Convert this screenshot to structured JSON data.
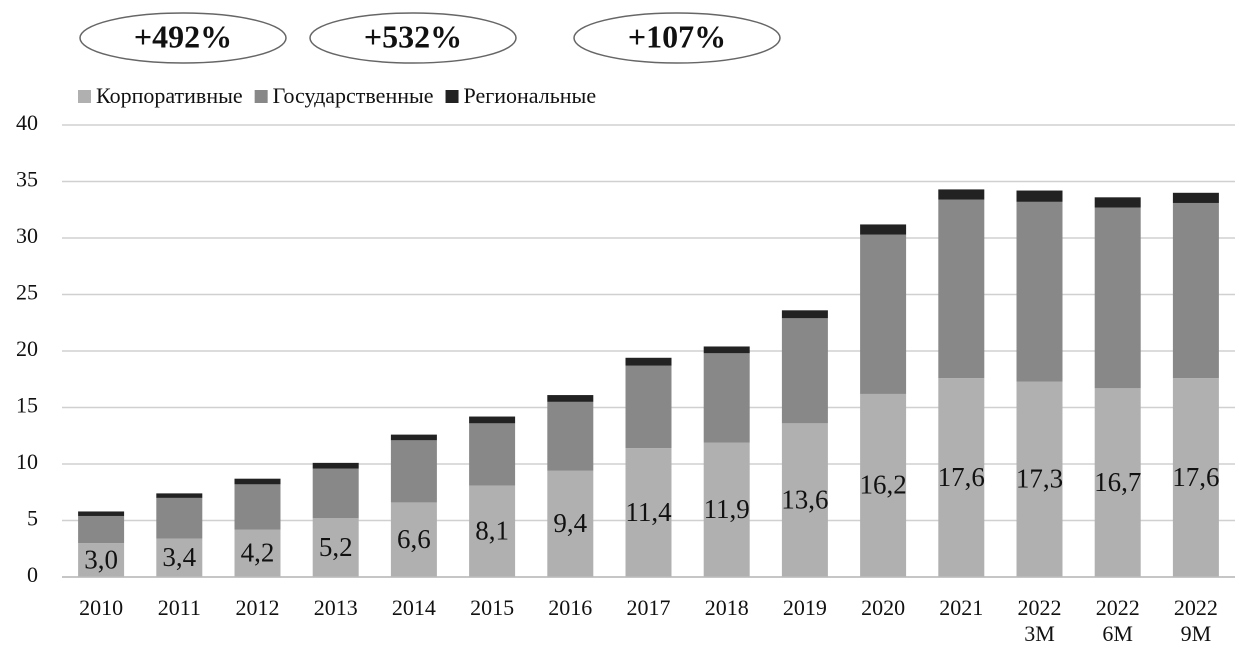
{
  "chart_data": {
    "type": "stacked_bar",
    "annotations": [
      "+492%",
      "+532%",
      "+107%"
    ],
    "categories": [
      "2010",
      "2011",
      "2012",
      "2013",
      "2014",
      "2015",
      "2016",
      "2017",
      "2018",
      "2019",
      "2020",
      "2021",
      "2022\n3M",
      "2022\n6M",
      "2022\n9M"
    ],
    "series": [
      {
        "name": "Корпоративные",
        "color": "#b0b0b0",
        "values": [
          3.0,
          3.4,
          4.2,
          5.2,
          6.6,
          8.1,
          9.4,
          11.4,
          11.9,
          13.6,
          16.2,
          17.6,
          17.3,
          16.7,
          17.6
        ],
        "value_labels": [
          "3,0",
          "3,4",
          "4,2",
          "5,2",
          "6,6",
          "8,1",
          "9,4",
          "11,4",
          "11,9",
          "13,6",
          "16,2",
          "17,6",
          "17,3",
          "16,7",
          "17,6"
        ]
      },
      {
        "name": "Государственные",
        "color": "#888888",
        "values": [
          2.4,
          3.6,
          4.0,
          4.4,
          5.5,
          5.5,
          6.1,
          7.3,
          7.9,
          9.3,
          14.1,
          15.8,
          15.9,
          16.0,
          15.5
        ]
      },
      {
        "name": "Региональные",
        "color": "#222222",
        "values": [
          0.4,
          0.4,
          0.5,
          0.5,
          0.5,
          0.6,
          0.6,
          0.7,
          0.6,
          0.7,
          0.9,
          0.9,
          1.0,
          0.9,
          0.9
        ]
      }
    ],
    "ylim": [
      0,
      40
    ],
    "yticks": [
      0,
      5,
      10,
      15,
      20,
      25,
      30,
      35,
      40
    ],
    "grid": true,
    "legend": "top-left"
  }
}
